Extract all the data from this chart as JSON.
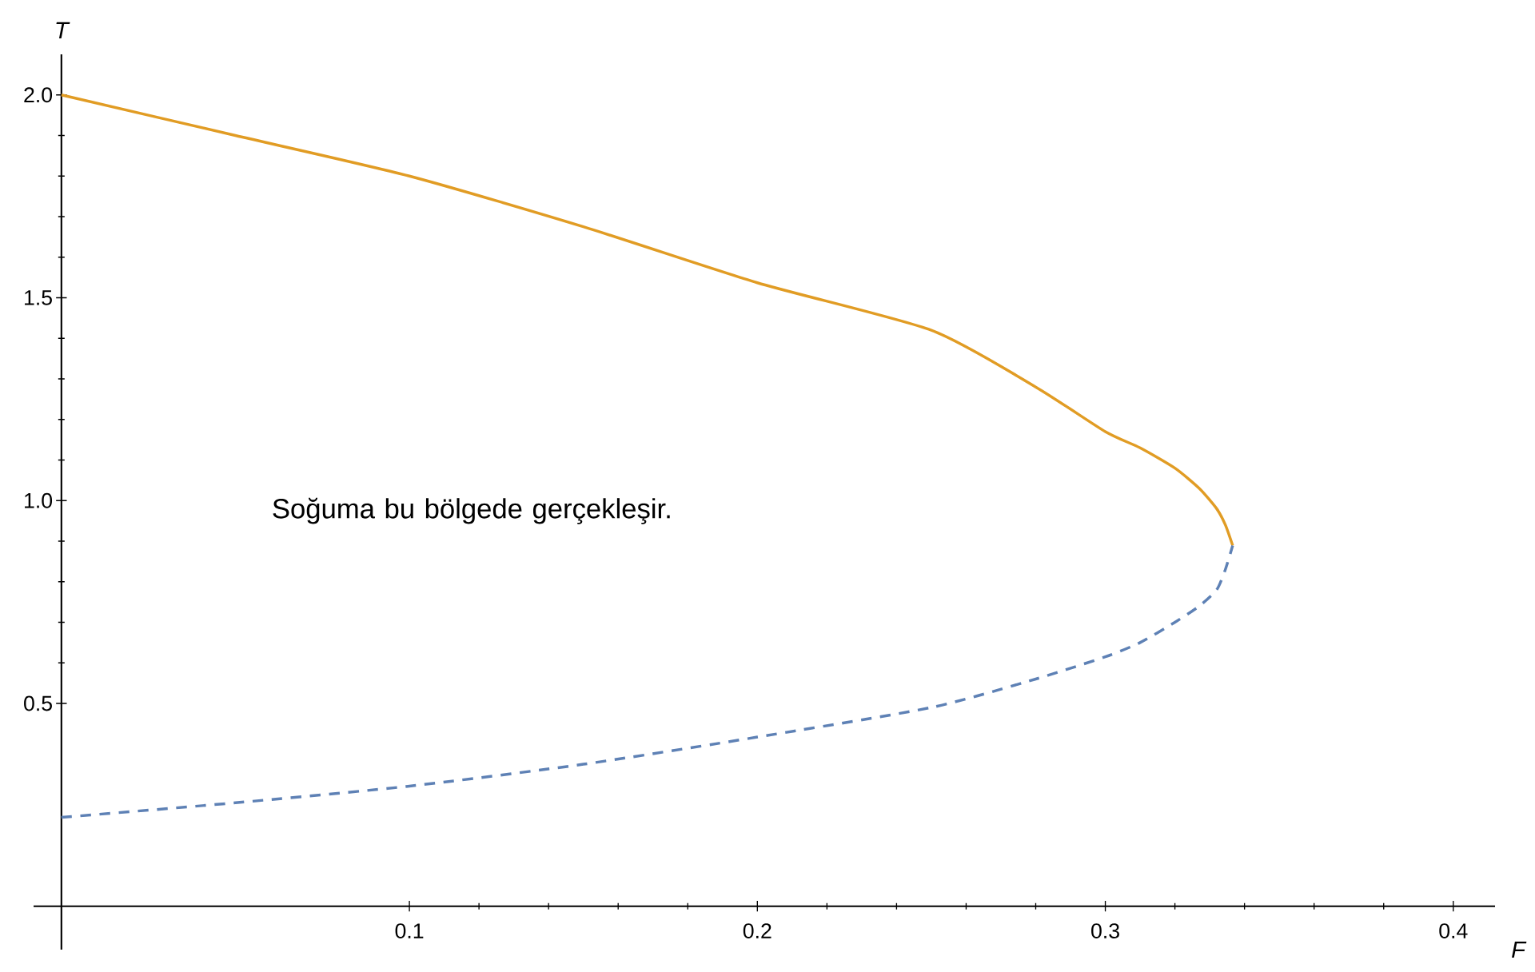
{
  "chart_data": {
    "type": "line",
    "xlabel": "F",
    "ylabel": "T",
    "xlim": [
      -0.008,
      0.412
    ],
    "ylim": [
      -0.107,
      2.1
    ],
    "xticks": [
      0.1,
      0.2,
      0.3,
      0.4
    ],
    "yticks": [
      {
        "value": 0.5,
        "label": "0.5"
      },
      {
        "value": 1.0,
        "label": "1.0"
      },
      {
        "value": 1.5,
        "label": "1.5"
      },
      {
        "value": 2.0,
        "label": "2.0"
      }
    ],
    "series": [
      {
        "color": "#e19c24",
        "line_style": "solid",
        "x": [
          0,
          0.05,
          0.1,
          0.15,
          0.2,
          0.25,
          0.28,
          0.3,
          0.31,
          0.32,
          0.327,
          0.332,
          0.3345,
          0.3366
        ],
        "values": [
          2.0,
          1.9,
          1.8,
          1.675,
          1.537,
          1.42,
          1.28,
          1.17,
          1.13,
          1.08,
          1.03,
          0.98,
          0.94,
          0.889
        ]
      },
      {
        "color": "#5e81b5",
        "line_style": "dashed",
        "x": [
          0,
          0.05,
          0.1,
          0.15,
          0.2,
          0.25,
          0.28,
          0.3,
          0.31,
          0.32,
          0.327,
          0.332,
          0.3345,
          0.3366
        ],
        "values": [
          0.219,
          0.255,
          0.296,
          0.35,
          0.417,
          0.49,
          0.56,
          0.615,
          0.65,
          0.7,
          0.74,
          0.78,
          0.83,
          0.889
        ]
      }
    ],
    "annotations": [
      "Soğuma bu bölgede gerçekleşir."
    ]
  }
}
